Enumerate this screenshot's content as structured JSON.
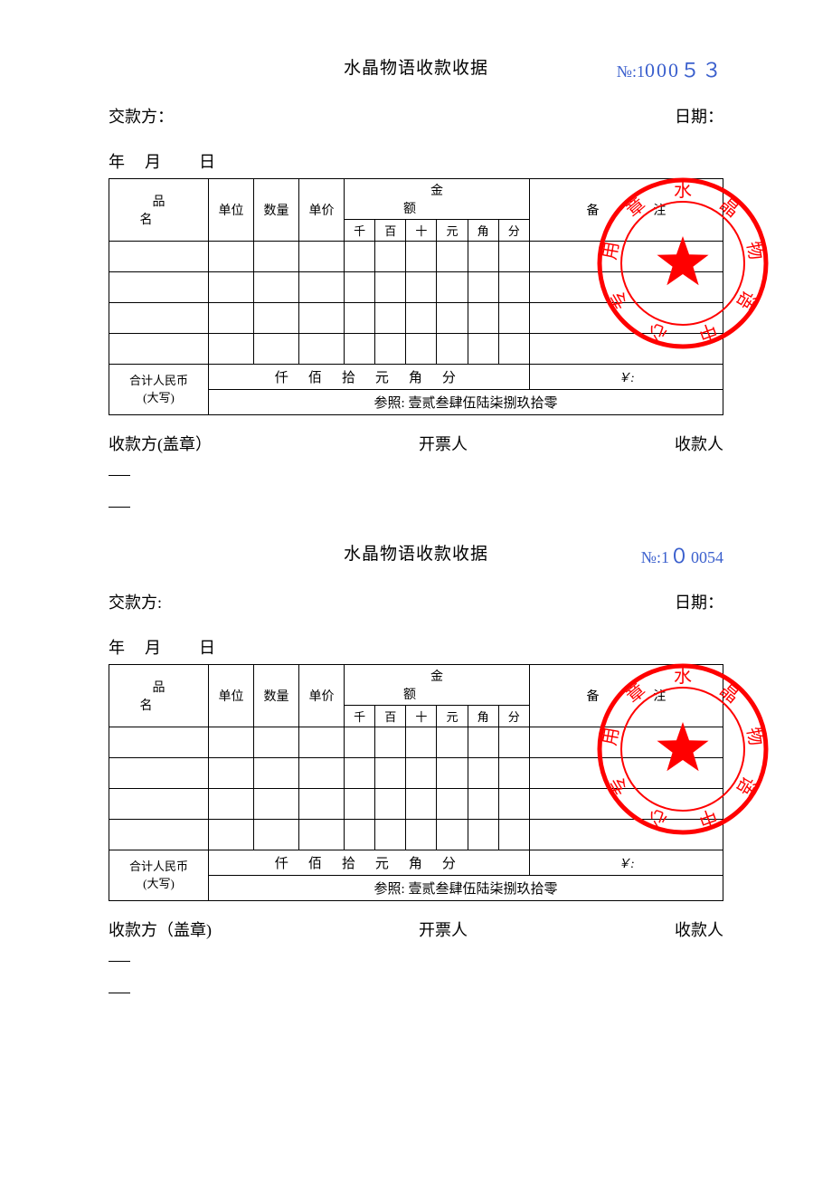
{
  "stamp": {
    "color": "#ff0000",
    "ring_outer_r": 92,
    "ring_inner_r": 68,
    "stroke_outer": 5,
    "stroke_inner": 2,
    "star_r": 30,
    "chars": [
      "水",
      "晶",
      "物",
      "语",
      "中",
      "心",
      "专",
      "用",
      "章"
    ]
  },
  "common": {
    "title": "水晶物语收款收据",
    "serial_prefix": "№:1",
    "payer_label": "交款方：",
    "date_label": "日期：",
    "date_line": "年　月　　日",
    "col_name": "品名",
    "col_unit": "单位",
    "col_qty": "数量",
    "col_price": "单价",
    "col_amount": "金额",
    "col_remark": "备注",
    "sub_qian": "千",
    "sub_bai": "百",
    "sub_shi": "十",
    "sub_yuan": "元",
    "sub_jiao": "角",
    "sub_fen": "分",
    "total_l1": "合计人民币",
    "total_l2": "(大写)",
    "cn_units": "仟佰拾元角分",
    "total_y": "￥:",
    "ref": "参照: 壹贰叁肆伍陆柒捌玖拾零",
    "sign_payee": "收款方(盖章）",
    "sign_payee2": "收款方（盖章)",
    "sign_issuer": "开票人",
    "sign_collector": "收款人",
    "payer_label2": "交款方:"
  },
  "r1": {
    "serial_tail": "000５３"
  },
  "r2": {
    "serial_mid": "０",
    "serial_tail": "0054"
  }
}
